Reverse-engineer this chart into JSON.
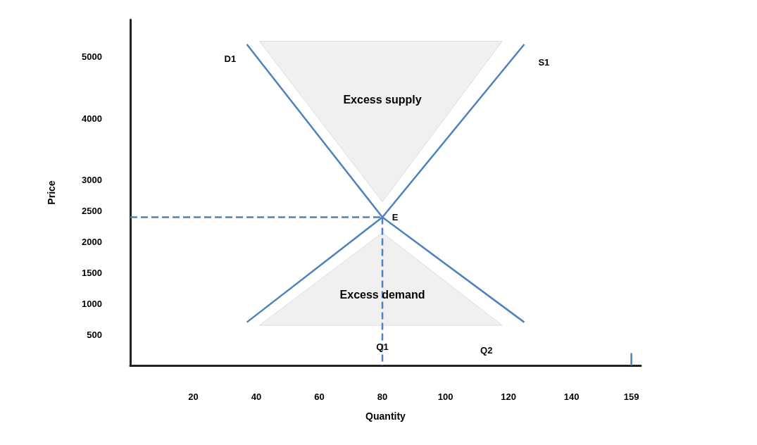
{
  "chart_data": {
    "type": "line",
    "xlabel": "Quantity",
    "ylabel": "Price",
    "xlim": [
      0,
      162
    ],
    "xticks": [
      20,
      40,
      60,
      80,
      100,
      120,
      140,
      159
    ],
    "ylim": [
      0,
      5600
    ],
    "yticks": [
      500,
      1000,
      1500,
      2000,
      2500,
      3000,
      4000,
      5000
    ],
    "series": [
      {
        "name": "D1",
        "color": "#4f81bd",
        "x": [
          125,
          80,
          37
        ],
        "values": [
          700,
          2400,
          5200
        ]
      },
      {
        "name": "S1",
        "color": "#4f81bd",
        "x": [
          37,
          80,
          125
        ],
        "values": [
          700,
          2400,
          5200
        ]
      },
      {
        "color": "#4f81bd",
        "line_style": "dashed",
        "x": [
          0,
          80
        ],
        "values": [
          2400,
          2400
        ]
      },
      {
        "color": "#4f81bd",
        "line_style": "dashed",
        "x": [
          80,
          80
        ],
        "values": [
          2400,
          0
        ]
      },
      {
        "color": "#4f81bd",
        "x": [
          159,
          159
        ],
        "values": [
          0,
          200
        ]
      }
    ],
    "annotations": [
      {
        "text": "E",
        "x": 80,
        "y": 2400
      },
      "Q1",
      "Q2",
      "Excess supply",
      "Excess demand"
    ],
    "grid": false,
    "legend": false,
    "marker": "none"
  }
}
